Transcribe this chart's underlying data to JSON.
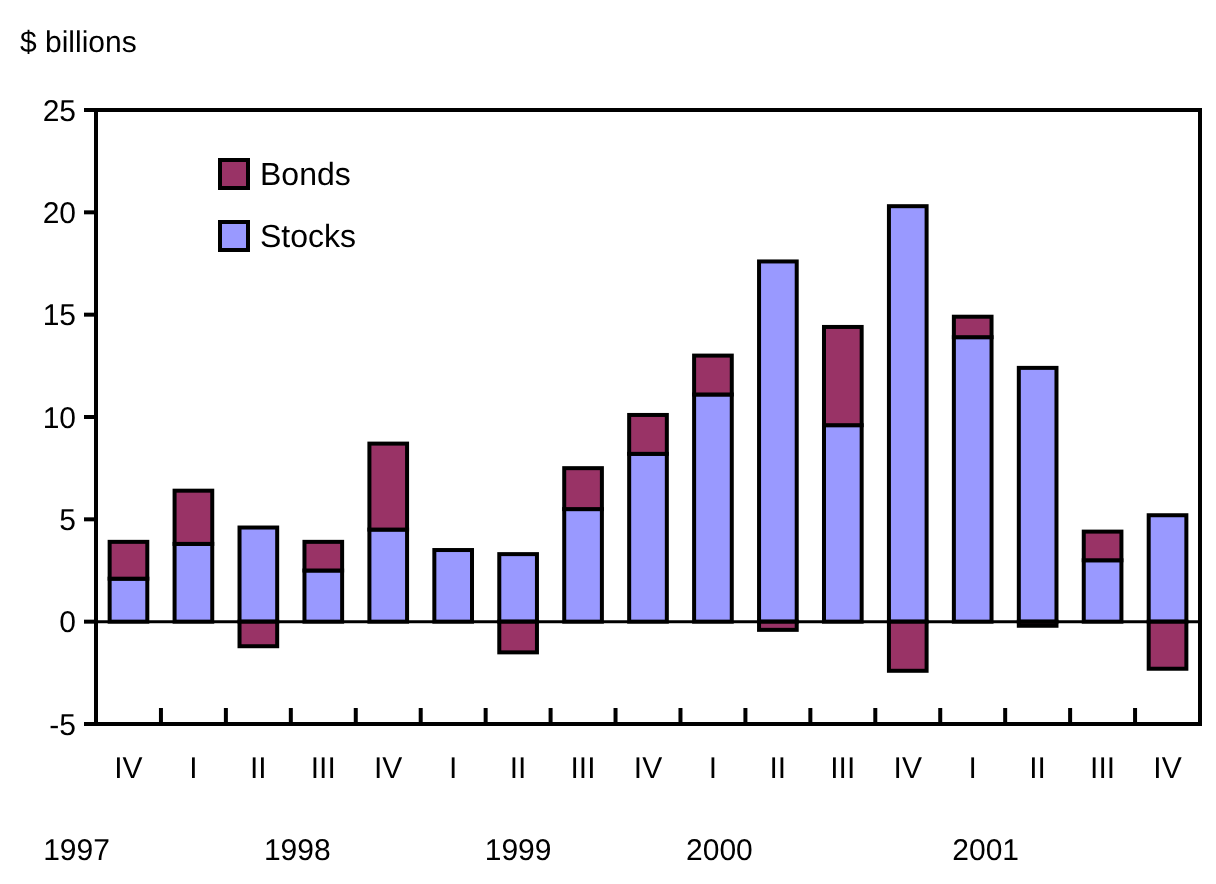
{
  "chart_data": {
    "type": "bar",
    "stacked": true,
    "ylabel": "$ billions",
    "categories": [
      "IV",
      "I",
      "II",
      "III",
      "IV",
      "I",
      "II",
      "III",
      "IV",
      "I",
      "II",
      "III",
      "IV",
      "I",
      "II",
      "III",
      "IV"
    ],
    "series": [
      {
        "name": "Stocks",
        "color": "#9999ff",
        "values": [
          2.1,
          3.8,
          4.6,
          2.5,
          4.5,
          3.5,
          3.3,
          5.5,
          8.2,
          11.1,
          17.6,
          9.6,
          20.3,
          13.9,
          12.4,
          3.0,
          5.2
        ]
      },
      {
        "name": "Bonds",
        "color": "#993366",
        "values": [
          1.8,
          2.6,
          -1.2,
          1.4,
          4.2,
          0,
          -1.5,
          2.0,
          1.9,
          1.9,
          -0.4,
          4.8,
          -2.4,
          1.0,
          -0.2,
          1.4,
          -2.3
        ]
      }
    ],
    "ylim": [
      -5,
      25
    ],
    "yticks": [
      -5,
      0,
      5,
      10,
      15,
      20,
      25
    ],
    "legend": "top left",
    "ref_lines": [
      {
        "axis": "y",
        "value": 0,
        "color": "#000000"
      }
    ],
    "annotations": [
      "1997",
      "1998",
      "1999",
      "2000",
      "2001"
    ]
  }
}
